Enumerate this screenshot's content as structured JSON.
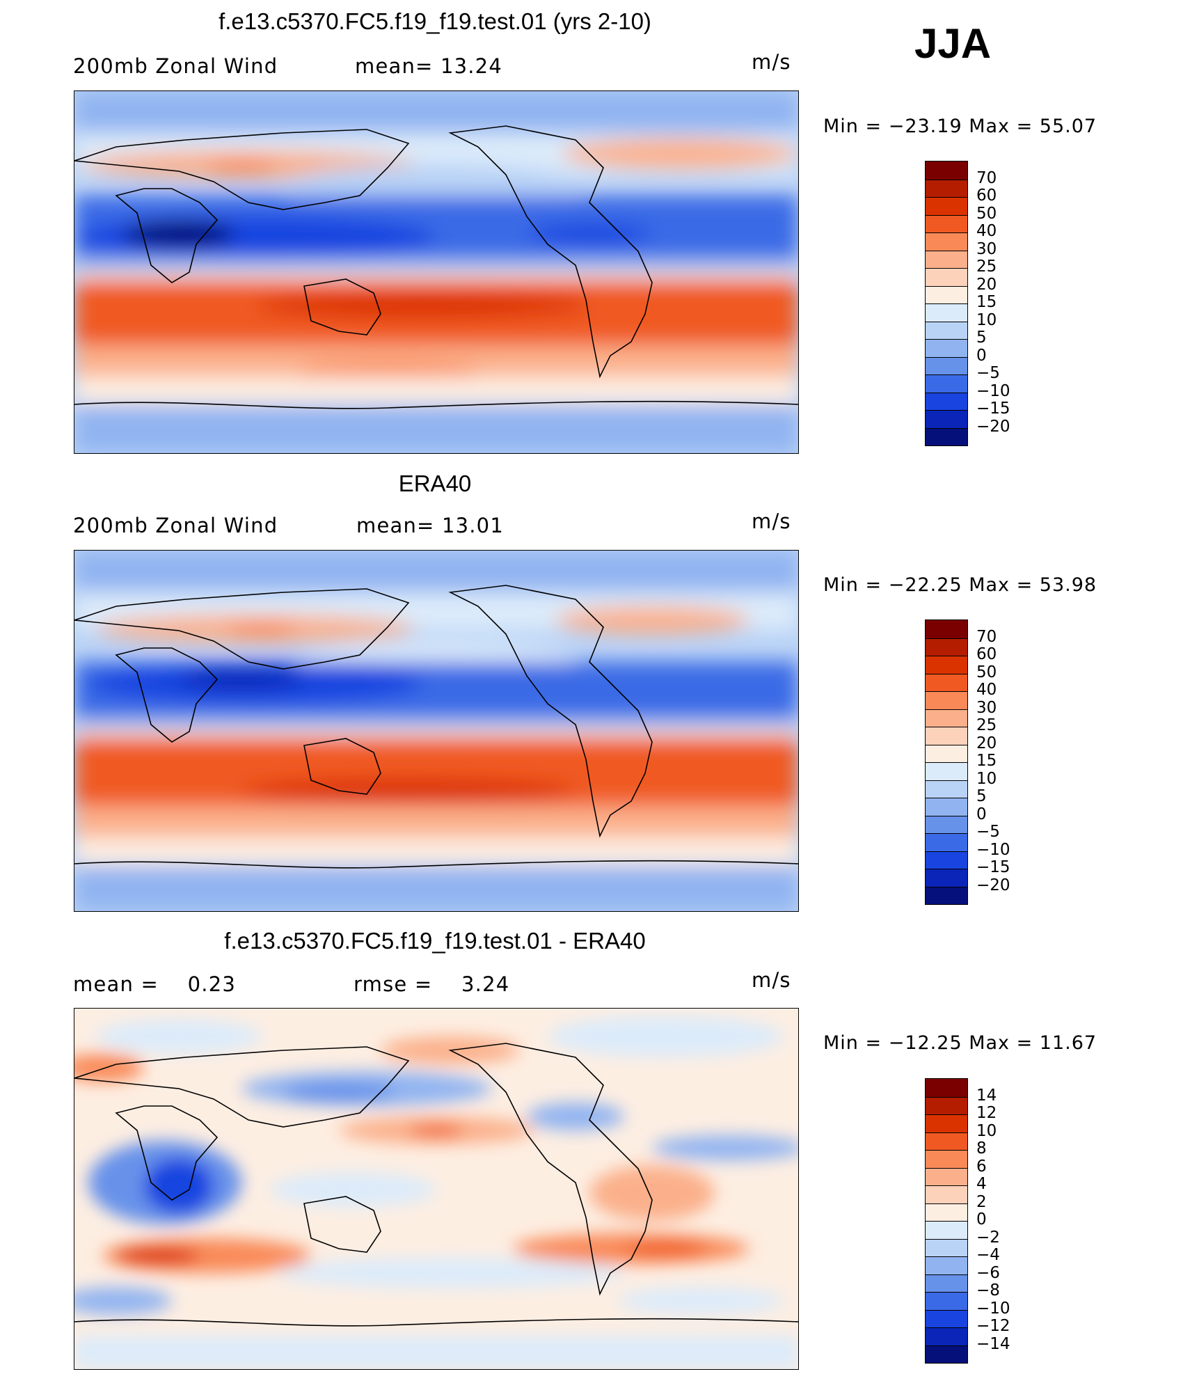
{
  "season": "JJA",
  "panels": [
    {
      "id": "model",
      "title": "f.e13.c5370.FC5.f19_f19.test.01 (yrs 2-10)",
      "left_text": "200mb Zonal Wind",
      "center_text": "mean=  13.24",
      "units": "m/s",
      "minmax": "Min = −23.19 Max =  55.07",
      "legend_labels": [
        "70",
        "60",
        "50",
        "40",
        "30",
        "25",
        "20",
        "15",
        "10",
        "5",
        "0",
        "−5",
        "−10",
        "−15",
        "−20"
      ],
      "legend_colors": [
        "#7a0000",
        "#b51d00",
        "#db3300",
        "#f05a22",
        "#f98a58",
        "#fbb08b",
        "#fdd2bb",
        "#fdeee2",
        "#dcebfa",
        "#b9d3f6",
        "#91b4f1",
        "#6792ea",
        "#3a6ae6",
        "#1944e0",
        "#0a25b8",
        "#06107a"
      ]
    },
    {
      "id": "obs",
      "title": "ERA40",
      "left_text": "200mb Zonal Wind",
      "center_text": "mean=  13.01",
      "units": "m/s",
      "minmax": "Min = −22.25 Max =  53.98",
      "legend_labels": [
        "70",
        "60",
        "50",
        "40",
        "30",
        "25",
        "20",
        "15",
        "10",
        "5",
        "0",
        "−5",
        "−10",
        "−15",
        "−20"
      ],
      "legend_colors": [
        "#7a0000",
        "#b51d00",
        "#db3300",
        "#f05a22",
        "#f98a58",
        "#fbb08b",
        "#fdd2bb",
        "#fdeee2",
        "#dcebfa",
        "#b9d3f6",
        "#91b4f1",
        "#6792ea",
        "#3a6ae6",
        "#1944e0",
        "#0a25b8",
        "#06107a"
      ]
    },
    {
      "id": "diff",
      "title": "f.e13.c5370.FC5.f19_f19.test.01 - ERA40",
      "left_text": "mean =    0.23",
      "center_text": "rmse =    3.24",
      "units": "m/s",
      "minmax": "Min = −12.25 Max =  11.67",
      "legend_labels": [
        "14",
        "12",
        "10",
        "8",
        "6",
        "4",
        "2",
        "0",
        "−2",
        "−4",
        "−6",
        "−8",
        "−10",
        "−12",
        "−14"
      ],
      "legend_colors": [
        "#7a0000",
        "#b51d00",
        "#db3300",
        "#f05a22",
        "#f98a58",
        "#fbb08b",
        "#fdd2bb",
        "#fdeee2",
        "#dcebfa",
        "#b9d3f6",
        "#91b4f1",
        "#6792ea",
        "#3a6ae6",
        "#1944e0",
        "#0a25b8",
        "#06107a"
      ]
    }
  ]
}
